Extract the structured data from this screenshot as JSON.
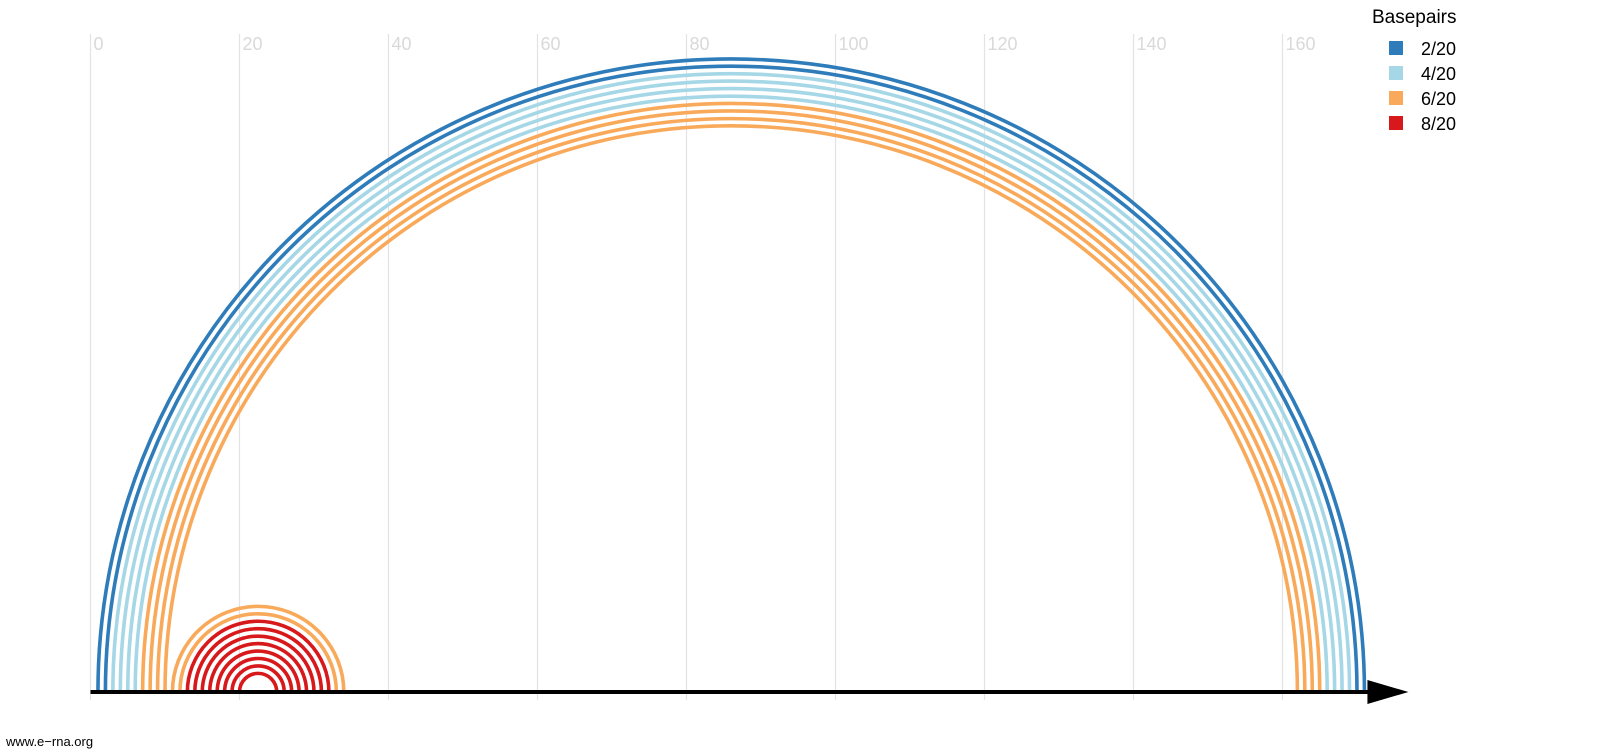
{
  "chart_data": {
    "type": "arc",
    "x_ticks": [
      0,
      20,
      40,
      60,
      80,
      100,
      120,
      140,
      160
    ],
    "xlim": [
      0,
      171
    ],
    "grid": true,
    "legend": {
      "title": "Basepairs",
      "placement": "top-right",
      "entries": [
        {
          "label": "2/20",
          "color": "#2e7cba"
        },
        {
          "label": "4/20",
          "color": "#a6d7e6"
        },
        {
          "label": "6/20",
          "color": "#f9a95a"
        },
        {
          "label": "8/20",
          "color": "#d7191c"
        }
      ]
    },
    "arcs": [
      {
        "i": 1,
        "j": 171,
        "group": 0
      },
      {
        "i": 2,
        "j": 170,
        "group": 0
      },
      {
        "i": 3,
        "j": 169,
        "group": 1
      },
      {
        "i": 4,
        "j": 168,
        "group": 1
      },
      {
        "i": 5,
        "j": 167,
        "group": 1
      },
      {
        "i": 6,
        "j": 166,
        "group": 1
      },
      {
        "i": 7,
        "j": 165,
        "group": 2
      },
      {
        "i": 8,
        "j": 164,
        "group": 2
      },
      {
        "i": 9,
        "j": 163,
        "group": 2
      },
      {
        "i": 10,
        "j": 162,
        "group": 2
      },
      {
        "i": 11,
        "j": 34,
        "group": 2
      },
      {
        "i": 12,
        "j": 33,
        "group": 2
      },
      {
        "i": 13,
        "j": 32,
        "group": 3
      },
      {
        "i": 14,
        "j": 31,
        "group": 3
      },
      {
        "i": 15,
        "j": 30,
        "group": 3
      },
      {
        "i": 16,
        "j": 29,
        "group": 3
      },
      {
        "i": 17,
        "j": 28,
        "group": 3
      },
      {
        "i": 18,
        "j": 27,
        "group": 3
      },
      {
        "i": 19,
        "j": 26,
        "group": 3
      },
      {
        "i": 20,
        "j": 25,
        "group": 3
      }
    ]
  },
  "footer": {
    "source": "www.e−rna.org"
  }
}
